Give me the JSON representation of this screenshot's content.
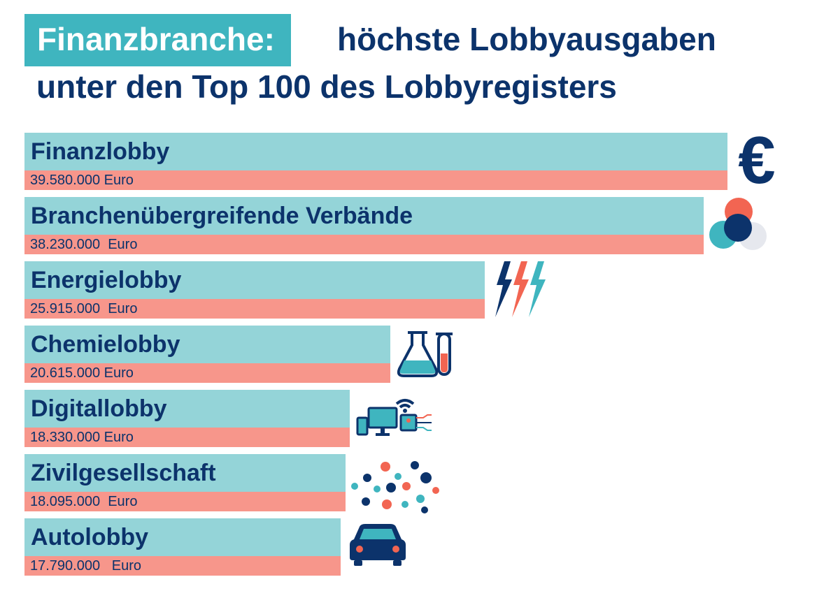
{
  "title": {
    "highlight": "Finanzbranche:",
    "rest_line1": "höchste Lobbyausgaben",
    "line2": "unter den Top 100 des Lobbyregisters"
  },
  "colors": {
    "navy": "#0c336b",
    "teal": "#3fb5bf",
    "bar_light_teal": "#94d4d8",
    "bar_salmon": "#f7968b",
    "coral": "#f26552",
    "light_gray": "#e6e8ee"
  },
  "chart_data": {
    "type": "bar",
    "orientation": "horizontal",
    "title": "Finanzbranche: höchste Lobbyausgaben unter den Top 100 des Lobbyregisters",
    "categories": [
      "Finanzlobby",
      "Branchenübergreifende Verbände",
      "Energielobby",
      "Chemielobby",
      "Digitallobby",
      "Zivilgesellschaft",
      "Autolobby"
    ],
    "values": [
      39580000,
      38230000,
      25915000,
      20615000,
      18330000,
      18095000,
      17790000
    ],
    "value_labels": [
      "39.580.000 Euro",
      "38.230.000  Euro",
      "25.915.000  Euro",
      "20.615.000 Euro",
      "18.330.000 Euro",
      "18.095.000  Euro",
      "17.790.000   Euro"
    ],
    "icons": [
      "euro-icon",
      "overlapping-circles-icon",
      "lightning-bolts-icon",
      "chemistry-flask-icon",
      "digital-devices-icon",
      "dots-cloud-icon",
      "car-icon"
    ],
    "xlim": [
      0,
      39580000
    ],
    "grid": false,
    "legend": "none"
  }
}
